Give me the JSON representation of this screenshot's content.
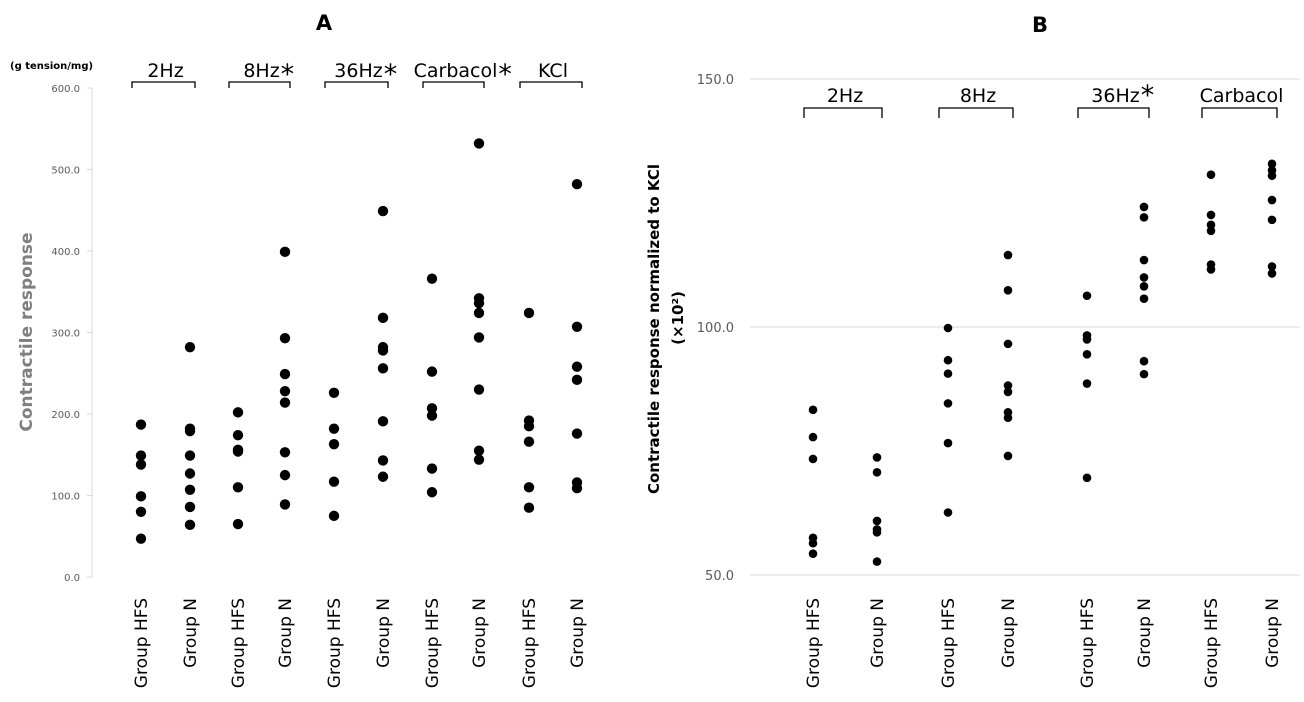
{
  "chart_data": [
    {
      "type": "scatter",
      "panel_title": "A",
      "ylabel": "Contractile response",
      "yunit": "(g tension/mg)",
      "ylim": [
        0,
        600
      ],
      "ytick_values": [
        0,
        100,
        200,
        300,
        400,
        500,
        600
      ],
      "ytick_labels": [
        "0.0",
        "100.0",
        "200.0",
        "300.0",
        "400.0",
        "500.0",
        "600.0"
      ],
      "grid": false,
      "categories": [
        "Group HFS",
        "Group N",
        "Group HFS",
        "Group N",
        "Group HFS",
        "Group N",
        "Group HFS",
        "Group N",
        "Group HFS",
        "Group N"
      ],
      "conditions": [
        {
          "label": "2Hz",
          "star": false
        },
        {
          "label": "8Hz",
          "star": true,
          "star_text": "*"
        },
        {
          "label": "36Hz",
          "star": true,
          "star_text": "*"
        },
        {
          "label": "Carbacol",
          "star": true,
          "star_text": "*"
        },
        {
          "label": "KCl",
          "star": false
        }
      ],
      "series": [
        {
          "values": [
            187,
            149,
            138,
            99,
            80,
            47
          ]
        },
        {
          "values": [
            282,
            182,
            179,
            149,
            127,
            107,
            86,
            64
          ]
        },
        {
          "values": [
            202,
            174,
            156,
            154,
            110,
            65
          ]
        },
        {
          "values": [
            399,
            293,
            249,
            228,
            214,
            153,
            125,
            89
          ]
        },
        {
          "values": [
            226,
            182,
            163,
            117,
            75
          ]
        },
        {
          "values": [
            449,
            318,
            282,
            278,
            256,
            191,
            143,
            123
          ]
        },
        {
          "values": [
            366,
            252,
            207,
            198,
            133,
            104
          ]
        },
        {
          "values": [
            532,
            342,
            336,
            324,
            294,
            230,
            155,
            144
          ]
        },
        {
          "values": [
            324,
            192,
            185,
            166,
            110,
            85
          ]
        },
        {
          "values": [
            482,
            307,
            258,
            242,
            176,
            116,
            109
          ]
        }
      ]
    },
    {
      "type": "scatter",
      "panel_title": "B",
      "ylabel": "Contractile response normalized to KCl",
      "yunit": "(×10²)",
      "ylim": [
        50,
        150
      ],
      "ytick_values": [
        50,
        100,
        150
      ],
      "ytick_labels": [
        "50.0",
        "100.0",
        "150.0"
      ],
      "grid": true,
      "categories": [
        "Group HFS",
        "Group N",
        "Group HFS",
        "Group N",
        "Group HFS",
        "Group N",
        "Group HFS",
        "Group N"
      ],
      "conditions": [
        {
          "label": "2Hz",
          "star": false
        },
        {
          "label": "8Hz",
          "star": false
        },
        {
          "label": "36Hz",
          "star": true,
          "star_text": "*"
        },
        {
          "label": "Carbacol",
          "star": false
        }
      ],
      "series": [
        {
          "values": [
            83.3,
            77.8,
            73.4,
            57.5,
            56.4,
            54.3
          ]
        },
        {
          "values": [
            73.7,
            70.7,
            60.9,
            59.2,
            58.6,
            52.7
          ]
        },
        {
          "values": [
            99.8,
            93.3,
            90.6,
            84.6,
            76.6,
            62.6
          ]
        },
        {
          "values": [
            114.5,
            107.4,
            96.6,
            88.2,
            86.9,
            82.8,
            81.7,
            74.0
          ]
        },
        {
          "values": [
            106.3,
            98.3,
            97.5,
            94.5,
            88.6,
            69.6
          ]
        },
        {
          "values": [
            124.2,
            122.1,
            113.5,
            110.0,
            108.2,
            105.7,
            93.1,
            90.5
          ]
        },
        {
          "values": [
            130.7,
            122.6,
            120.6,
            119.4,
            112.6,
            111.6
          ]
        },
        {
          "values": [
            132.9,
            131.6,
            130.5,
            125.6,
            121.6,
            112.2,
            110.8
          ]
        }
      ]
    }
  ]
}
